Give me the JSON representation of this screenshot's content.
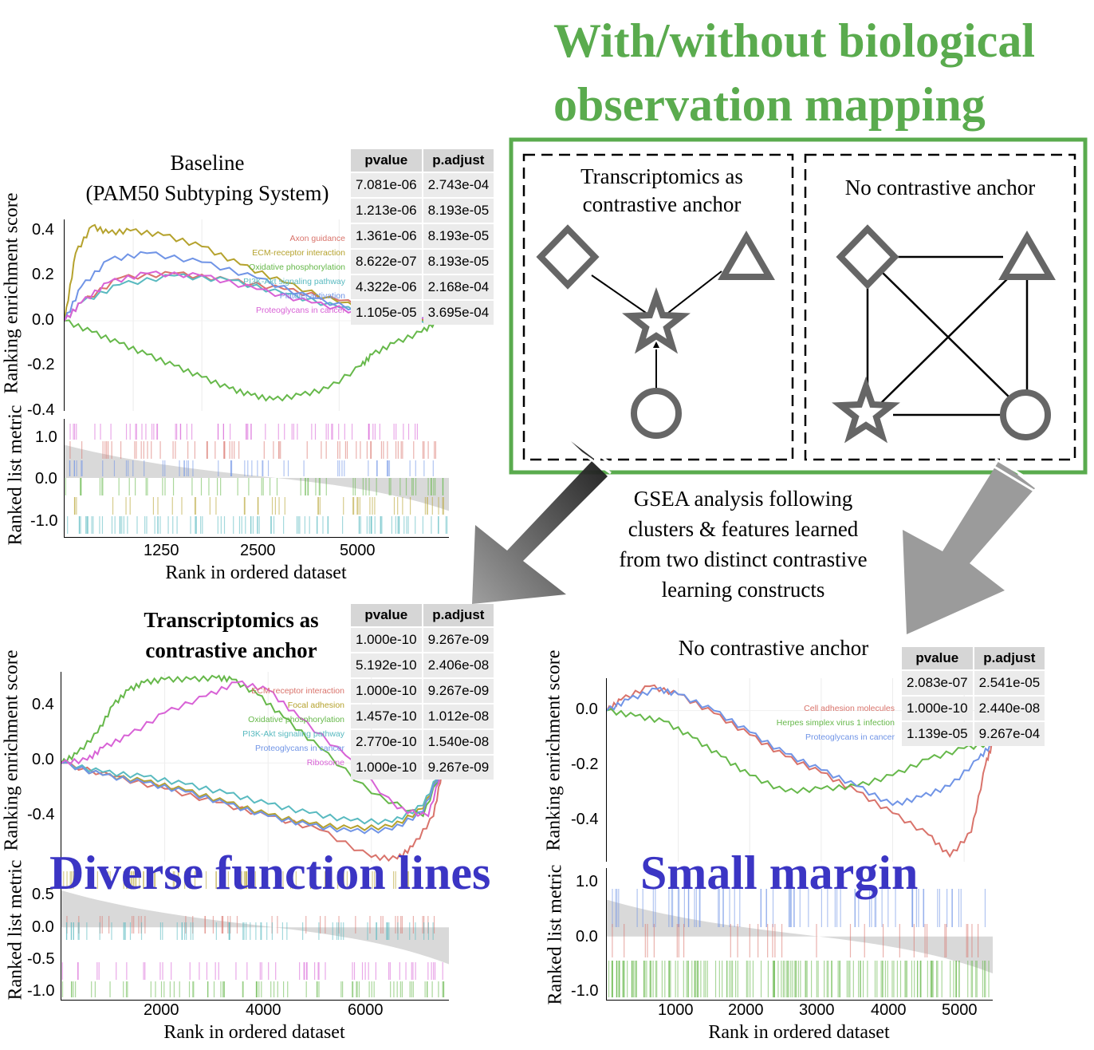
{
  "headline": {
    "line1": "With/without biological",
    "line2": "observation mapping"
  },
  "diagram": {
    "left_box_title": "Transcriptomics as contrastive anchor",
    "right_box_title": "No contrastive anchor",
    "caption": [
      "GSEA analysis following",
      "clusters & features learned",
      "from two distinct contrastive",
      "learning constructs"
    ],
    "colors": {
      "frame": "#5aab4e",
      "shape": "#666666"
    },
    "icons": [
      "diamond-icon",
      "triangle-icon",
      "star-icon",
      "circle-icon"
    ]
  },
  "callouts": {
    "left": "Diverse function lines",
    "right": "Small margin"
  },
  "chart_data": [
    {
      "type": "line",
      "title": "Baseline\n(PAM50 Subtyping System)",
      "title_lines": [
        "Baseline",
        "(PAM50 Subtyping System)"
      ],
      "ylabel": "Ranking enrichment score",
      "ylim": [
        -0.4,
        0.45
      ],
      "yticks": [
        "0.4",
        "0.2",
        "0.0",
        "-0.2",
        "-0.4"
      ],
      "metric_ylabel": "Ranked list metric",
      "metric_yticks": [
        "1.0",
        "0.0",
        "-1.0"
      ],
      "xlabel": "Rank in ordered dataset",
      "xticks": [
        "1250",
        "2500",
        "5000"
      ],
      "xlim": [
        0,
        7000
      ],
      "series": [
        {
          "name": "Axon guidance",
          "color": "#d9736b",
          "x": [
            0,
            300,
            1000,
            2000,
            3000,
            4000,
            5000,
            6000,
            6800
          ],
          "y": [
            0,
            0.08,
            0.19,
            0.21,
            0.18,
            0.14,
            0.09,
            0.04,
            0.0
          ]
        },
        {
          "name": "ECM-receptor interaction",
          "color": "#b5a22d",
          "x": [
            0,
            200,
            500,
            800,
            1200,
            1800,
            2500,
            3200,
            4000,
            5000,
            6000,
            6800
          ],
          "y": [
            0,
            0.3,
            0.42,
            0.39,
            0.4,
            0.38,
            0.33,
            0.25,
            0.17,
            0.08,
            0.03,
            0.0
          ]
        },
        {
          "name": "Oxidative phosphorylation",
          "color": "#66b84a",
          "x": [
            0,
            500,
            1000,
            1500,
            2000,
            2500,
            3000,
            3400,
            3800,
            4300,
            4800,
            5400,
            5600,
            6000,
            6500,
            6800
          ],
          "y": [
            0,
            -0.05,
            -0.1,
            -0.15,
            -0.2,
            -0.25,
            -0.3,
            -0.33,
            -0.35,
            -0.33,
            -0.3,
            -0.2,
            -0.15,
            -0.1,
            -0.05,
            0.0
          ]
        },
        {
          "name": "PI3K-Akt signaling pathway",
          "color": "#59bac0",
          "x": [
            0,
            300,
            1000,
            2000,
            3000,
            4000,
            5000,
            6000,
            6800
          ],
          "y": [
            0,
            0.08,
            0.16,
            0.2,
            0.18,
            0.12,
            0.06,
            0.01,
            0.0
          ]
        },
        {
          "name": "Platelet activation",
          "color": "#7094e6",
          "x": [
            0,
            300,
            800,
            1500,
            2500,
            3500,
            4500,
            5500,
            6800
          ],
          "y": [
            0,
            0.15,
            0.27,
            0.3,
            0.26,
            0.19,
            0.1,
            0.04,
            0.0
          ]
        },
        {
          "name": "Proteoglycans in cancer",
          "color": "#d862d6",
          "x": [
            0,
            300,
            800,
            1500,
            2500,
            3500,
            4500,
            5500,
            6800
          ],
          "y": [
            0,
            0.08,
            0.17,
            0.21,
            0.2,
            0.14,
            0.08,
            0.03,
            0.0
          ]
        }
      ],
      "table": {
        "columns": [
          "pvalue",
          "p.adjust"
        ],
        "rows": [
          [
            "7.081e-06",
            "2.743e-04"
          ],
          [
            "1.213e-06",
            "8.193e-05"
          ],
          [
            "1.361e-06",
            "8.193e-05"
          ],
          [
            "8.622e-07",
            "8.193e-05"
          ],
          [
            "4.322e-06",
            "2.168e-04"
          ],
          [
            "1.105e-05",
            "3.695e-04"
          ]
        ]
      }
    },
    {
      "type": "line",
      "title": "Transcriptomics as\ncontrastive anchor",
      "title_lines": [
        "Transcriptomics as",
        "contrastive anchor"
      ],
      "ylabel": "Ranking enrichment score",
      "ylim": [
        -0.65,
        0.6
      ],
      "yticks": [
        "0.4",
        "0.0",
        "-0.4"
      ],
      "metric_ylabel": "Ranked list metric",
      "metric_yticks": [
        "0.5",
        "0.0",
        "-0.5",
        "-1.0"
      ],
      "xlabel": "Rank in ordered dataset",
      "xticks": [
        "2000",
        "4000",
        "6000"
      ],
      "xlim": [
        0,
        7500
      ],
      "series": [
        {
          "name": "ECM-receptor interaction",
          "color": "#d9736b",
          "x": [
            0,
            1000,
            2000,
            3000,
            4000,
            5000,
            6000,
            6500,
            6800,
            7200,
            7400
          ],
          "y": [
            0,
            -0.09,
            -0.17,
            -0.26,
            -0.35,
            -0.44,
            -0.62,
            -0.63,
            -0.55,
            -0.35,
            0.0
          ]
        },
        {
          "name": "Focal adhesion",
          "color": "#b5a22d",
          "x": [
            0,
            800,
            1600,
            2400,
            3200,
            4000,
            4800,
            5600,
            6400,
            7000,
            7400
          ],
          "y": [
            0,
            -0.08,
            -0.12,
            -0.18,
            -0.26,
            -0.34,
            -0.4,
            -0.43,
            -0.42,
            -0.3,
            0.0
          ]
        },
        {
          "name": "Oxidative phosphorylation",
          "color": "#66b84a",
          "x": [
            0,
            300,
            700,
            1000,
            1300,
            1600,
            2000,
            2500,
            3000,
            3300,
            3800,
            4300,
            5000,
            6000,
            7000,
            7400
          ],
          "y": [
            0,
            0.06,
            0.2,
            0.38,
            0.48,
            0.53,
            0.55,
            0.55,
            0.56,
            0.55,
            0.45,
            0.3,
            0.1,
            -0.2,
            -0.35,
            0.0
          ]
        },
        {
          "name": "PI3K-Akt signaling pathway",
          "color": "#59bac0",
          "x": [
            0,
            800,
            1600,
            2400,
            3200,
            4000,
            4800,
            5600,
            6400,
            7000,
            7400
          ],
          "y": [
            0,
            -0.06,
            -0.09,
            -0.14,
            -0.2,
            -0.27,
            -0.33,
            -0.38,
            -0.39,
            -0.28,
            0.0
          ]
        },
        {
          "name": "Proteoglycans in cancer",
          "color": "#7094e6",
          "x": [
            0,
            800,
            1600,
            2400,
            3200,
            4000,
            4800,
            5600,
            6400,
            7000,
            7400
          ],
          "y": [
            0,
            -0.08,
            -0.13,
            -0.19,
            -0.27,
            -0.35,
            -0.41,
            -0.45,
            -0.44,
            -0.32,
            0.0
          ]
        },
        {
          "name": "Ribosome",
          "color": "#d862d6",
          "x": [
            0,
            500,
            800,
            1300,
            2000,
            2800,
            3400,
            4000,
            4600,
            5500,
            6500,
            7100,
            7400
          ],
          "y": [
            0,
            0.02,
            0.1,
            0.18,
            0.33,
            0.44,
            0.53,
            0.48,
            0.3,
            0.05,
            -0.3,
            -0.35,
            0.0
          ]
        }
      ],
      "table": {
        "columns": [
          "pvalue",
          "p.adjust"
        ],
        "rows": [
          [
            "1.000e-10",
            "9.267e-09"
          ],
          [
            "5.192e-10",
            "2.406e-08"
          ],
          [
            "1.000e-10",
            "9.267e-09"
          ],
          [
            "1.457e-10",
            "1.012e-08"
          ],
          [
            "2.770e-10",
            "1.540e-08"
          ],
          [
            "1.000e-10",
            "9.267e-09"
          ]
        ]
      }
    },
    {
      "type": "line",
      "title": "No contrastive anchor",
      "title_lines": [
        "No contrastive anchor"
      ],
      "ylabel": "Ranking enrichment score",
      "ylim": [
        -0.56,
        0.12
      ],
      "yticks": [
        "0.0",
        "-0.2",
        "-0.4"
      ],
      "metric_ylabel": "Ranked list metric",
      "metric_yticks": [
        "1.0",
        "0.0",
        "-1.0"
      ],
      "xlabel": "Rank in ordered dataset",
      "xticks": [
        "1000",
        "2000",
        "3000",
        "4000",
        "5000"
      ],
      "xlim": [
        0,
        5400
      ],
      "series": [
        {
          "name": "Cell adhesion molecules",
          "color": "#d9736b",
          "x": [
            0,
            200,
            600,
            1000,
            1500,
            2000,
            2500,
            3000,
            3500,
            4000,
            4500,
            4800,
            5100,
            5300,
            5400
          ],
          "y": [
            0,
            0.04,
            0.09,
            0.06,
            -0.01,
            -0.09,
            -0.17,
            -0.23,
            -0.3,
            -0.38,
            -0.46,
            -0.54,
            -0.45,
            -0.2,
            -0.12
          ]
        },
        {
          "name": "Herpes simplex virus 1 infection",
          "color": "#66b84a",
          "x": [
            0,
            400,
            800,
            1200,
            1600,
            2000,
            2500,
            3000,
            3500,
            4000,
            4500,
            5000,
            5400
          ],
          "y": [
            0,
            -0.02,
            -0.04,
            -0.1,
            -0.17,
            -0.24,
            -0.3,
            -0.29,
            -0.28,
            -0.24,
            -0.18,
            -0.14,
            -0.12
          ]
        },
        {
          "name": "Proteoglycans in cancer",
          "color": "#7094e6",
          "x": [
            0,
            300,
            700,
            1000,
            1500,
            2000,
            2500,
            3000,
            3500,
            4000,
            4400,
            4800,
            5200,
            5400
          ],
          "y": [
            0,
            0.04,
            0.08,
            0.06,
            0.0,
            -0.08,
            -0.16,
            -0.22,
            -0.28,
            -0.35,
            -0.32,
            -0.28,
            -0.18,
            -0.12
          ]
        }
      ],
      "table": {
        "columns": [
          "pvalue",
          "p.adjust"
        ],
        "rows": [
          [
            "2.083e-07",
            "2.541e-05"
          ],
          [
            "1.000e-10",
            "2.440e-08"
          ],
          [
            "1.139e-05",
            "9.267e-04"
          ]
        ]
      }
    }
  ]
}
